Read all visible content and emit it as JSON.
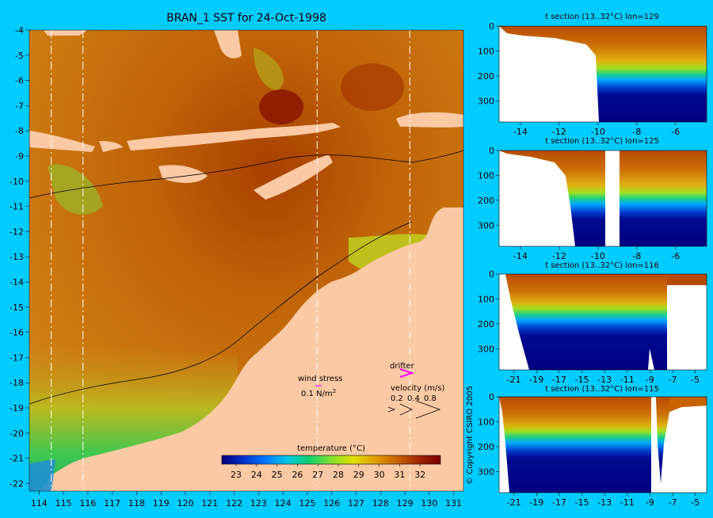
{
  "map": {
    "title": "BRAN_1 SST for 24-Oct-1998",
    "lon_ticks": [
      "114",
      "115",
      "116",
      "117",
      "118",
      "119",
      "120",
      "121",
      "122",
      "123",
      "124",
      "125",
      "126",
      "127",
      "128",
      "129",
      "130",
      "131"
    ],
    "lat_ticks": [
      "-4",
      "-5",
      "-6",
      "-7",
      "-8",
      "-9",
      "-10",
      "-11",
      "-12",
      "-13",
      "-14",
      "-15",
      "-16",
      "-17",
      "-18",
      "-19",
      "-20",
      "-21",
      "-22"
    ],
    "section_lons": [
      114.5,
      115.8,
      125.4,
      129.2
    ],
    "colors": {
      "land": "#fbc9a3",
      "background": "#00ccff"
    }
  },
  "colorbar": {
    "label": "temperature (°C)",
    "ticks": [
      "23",
      "24",
      "25",
      "26",
      "27",
      "28",
      "29",
      "30",
      "31",
      "32"
    ],
    "colors": [
      "#000080",
      "#0032c8",
      "#0078ff",
      "#00c8e6",
      "#10d070",
      "#80e030",
      "#e0e000",
      "#e0a000",
      "#c86400",
      "#a02800",
      "#780000"
    ]
  },
  "legend": {
    "wind_stress_label": "wind stress",
    "wind_stress_value": "0.1 N/m",
    "wind_stress_sup": "2",
    "drifter_label": "drifter",
    "velocity_label": "velocity (m/s)",
    "velocity_ticks": [
      "0.2",
      "0.4",
      "0.8"
    ]
  },
  "sections": [
    {
      "title": "t section (13..32°C) lon=129",
      "x_ticks": [
        "-14",
        "-12",
        "-10",
        "-8",
        "-6"
      ],
      "y_ticks": [
        "0",
        "100",
        "200",
        "300"
      ]
    },
    {
      "title": "t section (13..32°C) lon=125",
      "x_ticks": [
        "-14",
        "-12",
        "-10",
        "-8",
        "-6"
      ],
      "y_ticks": [
        "0",
        "100",
        "200",
        "300"
      ]
    },
    {
      "title": "t section (13..32°C) lon=116",
      "x_ticks": [
        "-21",
        "-19",
        "-17",
        "-15",
        "-13",
        "-11",
        "-9",
        "-7",
        "-5"
      ],
      "y_ticks": [
        "0",
        "100",
        "200",
        "300"
      ]
    },
    {
      "title": "t section (13..32°C) lon=115",
      "x_ticks": [
        "-21",
        "-19",
        "-17",
        "-15",
        "-13",
        "-11",
        "-9",
        "-7",
        "-5"
      ],
      "y_ticks": [
        "0",
        "100",
        "200",
        "300"
      ]
    }
  ],
  "copyright": "© Copyright CSIRO 2005"
}
